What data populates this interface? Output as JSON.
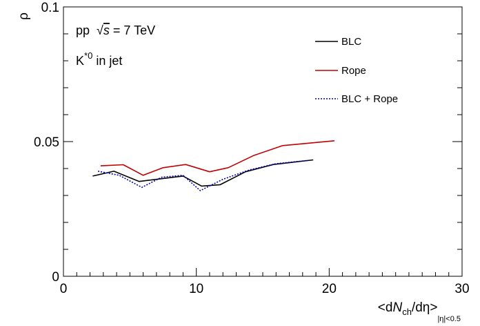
{
  "chart_data": {
    "type": "line",
    "title": "",
    "ylabel": "ρ",
    "xlabel": {
      "prefix": "<d",
      "N": "N",
      "ch": "ch",
      "mid": "/dη>",
      "sub": "|η|<0.5"
    },
    "xlim": [
      0,
      30
    ],
    "ylim": [
      0,
      0.1
    ],
    "x_major_ticks": [
      0,
      10,
      20,
      30
    ],
    "x_tick_labels": [
      "0",
      "10",
      "20",
      "30"
    ],
    "y_major_ticks": [
      0,
      0.05,
      0.1
    ],
    "y_tick_labels": [
      "0",
      "0.05",
      "0.1"
    ],
    "grid": false,
    "legend_position": "top-right",
    "annotations": {
      "system": "pp",
      "sqrt_symbol": "√",
      "s": "s",
      "energy": " = 7 TeV",
      "particle_base": "K",
      "particle_sup": "*0",
      "particle_rest": " in jet"
    },
    "series": [
      {
        "name": "BLC",
        "color": "#000000",
        "dash": "solid",
        "x": [
          2.2,
          3.8,
          5.7,
          7.5,
          9.0,
          10.4,
          11.8,
          13.7,
          15.8,
          18.8
        ],
        "y": [
          0.0372,
          0.039,
          0.0352,
          0.0363,
          0.0372,
          0.0335,
          0.034,
          0.0388,
          0.0415,
          0.0432
        ]
      },
      {
        "name": "Rope",
        "color": "#c00000",
        "dash": "solid",
        "x": [
          2.8,
          4.5,
          6.0,
          7.5,
          9.2,
          11.0,
          12.4,
          14.3,
          16.5,
          20.4
        ],
        "y": [
          0.041,
          0.0414,
          0.0375,
          0.0403,
          0.0415,
          0.0388,
          0.0403,
          0.0448,
          0.0485,
          0.0503
        ]
      },
      {
        "name": "BLC + Rope",
        "color": "#0000b0",
        "dash": "dotted",
        "x": [
          2.6,
          4.2,
          5.9,
          7.4,
          9.0,
          10.3,
          12.0,
          14.0,
          16.0,
          18.4
        ],
        "y": [
          0.039,
          0.0375,
          0.033,
          0.0368,
          0.0375,
          0.0318,
          0.036,
          0.0395,
          0.0418,
          0.043
        ]
      }
    ]
  }
}
